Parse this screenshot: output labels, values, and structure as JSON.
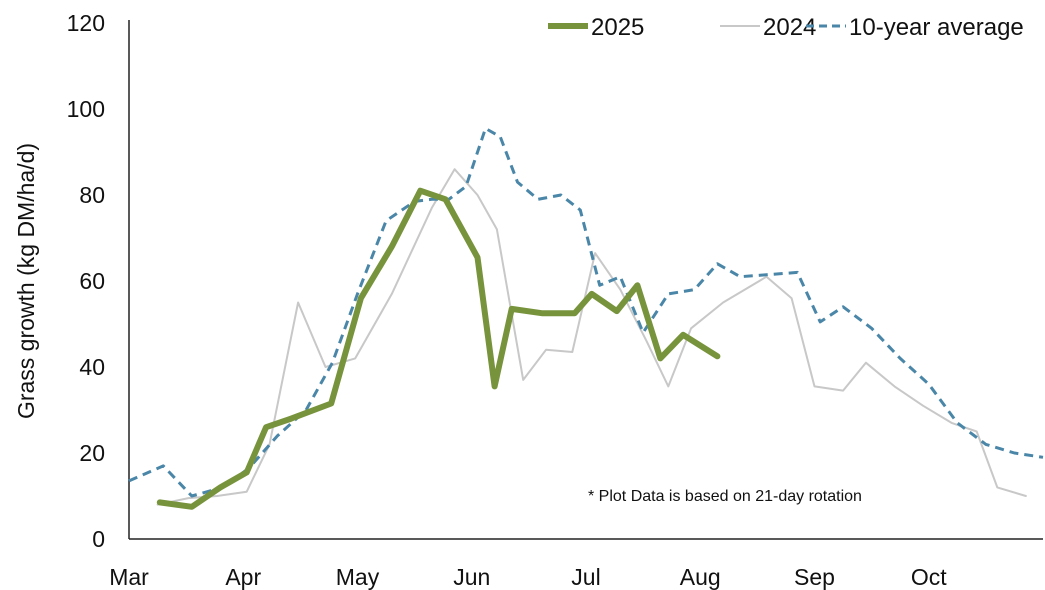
{
  "chart_data": {
    "type": "line",
    "ylabel": "Grass growth (kg DM/ha/d)",
    "xlabel": "",
    "ylim": [
      0,
      120
    ],
    "yticks": [
      0,
      20,
      40,
      60,
      80,
      100,
      120
    ],
    "xlim": [
      0,
      8
    ],
    "months": [
      "Mar",
      "Apr",
      "May",
      "Jun",
      "Jul",
      "Aug",
      "Sep",
      "Oct"
    ],
    "grid": false,
    "legend_position": "top-right",
    "note": "* Plot Data is based on 21-day rotation",
    "series": [
      {
        "name": "2025",
        "color": "#77933c",
        "style": "solid-thick",
        "x": [
          0.27,
          0.55,
          0.8,
          1.03,
          1.2,
          1.42,
          1.77,
          2.03,
          2.3,
          2.55,
          2.77,
          3.05,
          3.2,
          3.35,
          3.62,
          3.9,
          4.05,
          4.27,
          4.45,
          4.65,
          4.85,
          5.15
        ],
        "y": [
          8.5,
          7.5,
          12,
          15.5,
          26,
          28,
          31.5,
          56,
          68,
          81,
          79,
          65.5,
          35.5,
          53.5,
          52.5,
          52.5,
          57,
          53,
          59,
          42,
          47.5,
          42.5
        ]
      },
      {
        "name": "2024",
        "color": "#c8c8c8",
        "style": "solid-thin",
        "x": [
          0.25,
          0.52,
          0.77,
          1.03,
          1.23,
          1.48,
          1.72,
          1.98,
          2.3,
          2.65,
          2.85,
          3.05,
          3.22,
          3.45,
          3.65,
          3.88,
          4.08,
          4.3,
          4.53,
          4.72,
          4.92,
          5.2,
          5.58,
          5.8,
          6.0,
          6.25,
          6.45,
          6.7,
          6.95,
          7.2,
          7.42,
          7.6,
          7.85
        ],
        "y": [
          8,
          9.5,
          10,
          11,
          22,
          55,
          40,
          42,
          57,
          77,
          86,
          80,
          72,
          37,
          44,
          43.5,
          66.5,
          58,
          46,
          35.5,
          49,
          55,
          61,
          56,
          35.5,
          34.5,
          41,
          35.5,
          31,
          27,
          25,
          12,
          10
        ]
      },
      {
        "name": "10-year average",
        "color": "#4a86a8",
        "style": "dashed",
        "x": [
          0.0,
          0.3,
          0.55,
          0.82,
          1.05,
          1.3,
          1.55,
          1.78,
          2.0,
          2.25,
          2.5,
          2.65,
          2.8,
          2.95,
          3.12,
          3.25,
          3.4,
          3.58,
          3.78,
          3.95,
          4.12,
          4.3,
          4.5,
          4.72,
          4.95,
          5.15,
          5.35,
          5.6,
          5.85,
          6.05,
          6.25,
          6.5,
          6.75,
          7.0,
          7.25,
          7.5,
          7.75,
          8.0
        ],
        "y": [
          13.5,
          17,
          10,
          12,
          16.5,
          24,
          30,
          41,
          57,
          74,
          78.5,
          79,
          79,
          82,
          95.5,
          93.5,
          83,
          79,
          80,
          76.5,
          59,
          61,
          48,
          57,
          58,
          64,
          61,
          61.5,
          62,
          50.5,
          54,
          49,
          42,
          36,
          27,
          22,
          20,
          19
        ]
      }
    ]
  }
}
